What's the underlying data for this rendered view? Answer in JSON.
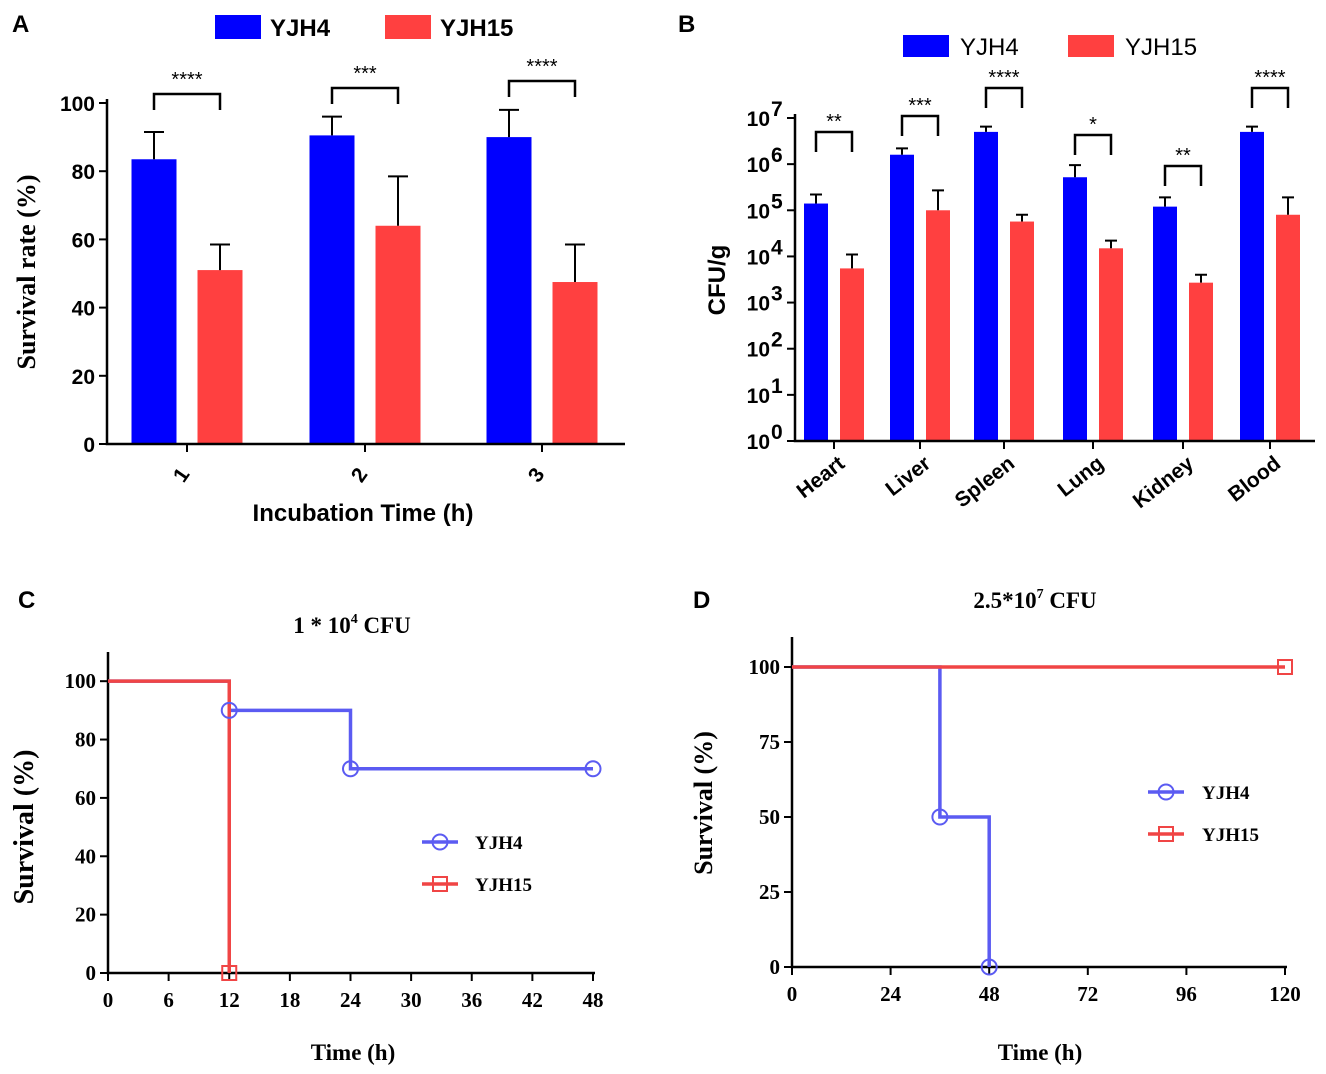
{
  "colors": {
    "yjh4_bar": "#0000ff",
    "yjh15_bar": "#ff4040",
    "yjh4_line": "#5b5bf2",
    "yjh15_line": "#f04545"
  },
  "chart_data": [
    {
      "panel": "A",
      "type": "bar",
      "categories": [
        "1",
        "2",
        "3"
      ],
      "series": [
        {
          "name": "YJH4",
          "values": [
            83.5,
            90.5,
            90
          ],
          "errors": [
            8,
            5.5,
            8
          ]
        },
        {
          "name": "YJH15",
          "values": [
            51,
            64,
            47.5
          ],
          "errors": [
            7.5,
            14.5,
            11
          ]
        }
      ],
      "significance": [
        "****",
        "***",
        "****"
      ],
      "xlabel": "Incubation Time (h)",
      "ylabel": "Survival rate (%)",
      "ylim": [
        0,
        100
      ],
      "yticks": [
        "0",
        "20",
        "40",
        "60",
        "80",
        "100"
      ],
      "legend_position": "top"
    },
    {
      "panel": "B",
      "type": "bar",
      "scale": "log",
      "categories": [
        "Heart",
        "Liver",
        "Spleen",
        "Lung",
        "Kidney",
        "Blood"
      ],
      "series": [
        {
          "name": "YJH4",
          "values": [
            140000,
            1600000,
            5000000,
            520000,
            120000,
            5000000
          ],
          "errors_high": [
            220000,
            2200000,
            6500000,
            950000,
            190000,
            6500000
          ]
        },
        {
          "name": "YJH15",
          "values": [
            5500,
            100000,
            57000,
            15000,
            2700,
            80000
          ],
          "errors_high": [
            11000,
            270000,
            80000,
            22000,
            4000,
            190000
          ]
        }
      ],
      "significance": [
        "**",
        "***",
        "****",
        "*",
        "**",
        "****"
      ],
      "ylabel": "CFU/g",
      "ylim": [
        1,
        10000000
      ],
      "ytick_base": "10",
      "ytick_exponents": [
        "0",
        "1",
        "2",
        "3",
        "4",
        "5",
        "6",
        "7"
      ],
      "legend_position": "top"
    },
    {
      "panel": "C",
      "type": "line",
      "title": "1 * 10",
      "title_exp": "4",
      "title_suffix": " CFU",
      "series": [
        {
          "name": "YJH4",
          "x": [
            0,
            12,
            24,
            48
          ],
          "y": [
            100,
            90,
            70,
            70
          ],
          "markers": [
            [
              12,
              90
            ],
            [
              24,
              70
            ],
            [
              48,
              70
            ]
          ],
          "marker": "circle"
        },
        {
          "name": "YJH15",
          "x": [
            0,
            12
          ],
          "y": [
            100,
            0
          ],
          "markers": [
            [
              12,
              0
            ]
          ],
          "marker": "square"
        }
      ],
      "xlabel": "Time (h)",
      "ylabel": "Survival (%)",
      "xlim": [
        0,
        48
      ],
      "ylim": [
        0,
        110
      ],
      "xticks": [
        "0",
        "6",
        "12",
        "18",
        "24",
        "30",
        "36",
        "42",
        "48"
      ],
      "yticks": [
        "0",
        "20",
        "40",
        "60",
        "80",
        "100"
      ],
      "legend_position": "center-right"
    },
    {
      "panel": "D",
      "type": "line",
      "title": "2.5*10",
      "title_exp": "7",
      "title_suffix": " CFU",
      "series": [
        {
          "name": "YJH4",
          "x": [
            0,
            36,
            48
          ],
          "y": [
            100,
            50,
            0
          ],
          "markers": [
            [
              36,
              50
            ],
            [
              48,
              0
            ]
          ],
          "marker": "circle"
        },
        {
          "name": "YJH15",
          "x": [
            0,
            120
          ],
          "y": [
            100,
            100
          ],
          "markers": [
            [
              120,
              100
            ]
          ],
          "marker": "square"
        }
      ],
      "xlabel": "Time (h)",
      "ylabel": "Survival (%)",
      "xlim": [
        0,
        120
      ],
      "ylim": [
        0,
        110
      ],
      "xticks": [
        "0",
        "24",
        "48",
        "72",
        "96",
        "120"
      ],
      "yticks": [
        "0",
        "25",
        "50",
        "75",
        "100"
      ],
      "legend_position": "center-right"
    }
  ]
}
